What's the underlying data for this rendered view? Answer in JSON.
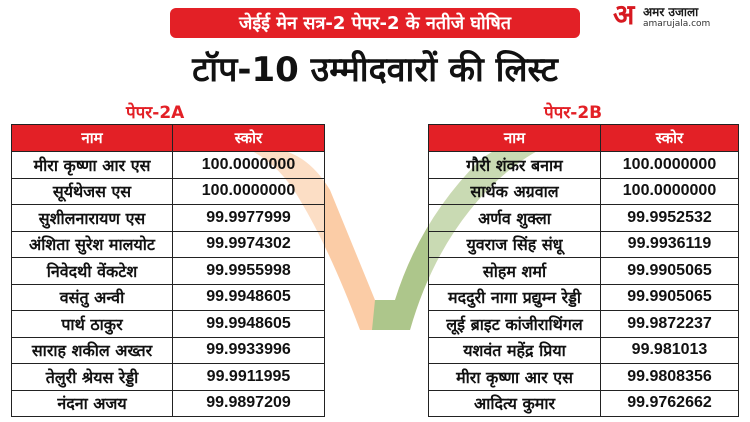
{
  "headline": "जेईई मेन सत्र-2 पेपर-2 के नतीजे घोषित",
  "subtitle": "टॉप-10 उम्मीदवारों की लिस्ट",
  "logo": {
    "mark": "अ",
    "name": "अमर उजाला",
    "url": "amarujala.com"
  },
  "colors": {
    "accent": "#e32026",
    "saffron": "#f7a35c",
    "green": "#7ac27a"
  },
  "tables": {
    "paper_2a": {
      "label": "पेपर-2A",
      "headers": [
        "नाम",
        "स्कोर"
      ],
      "rows": [
        [
          "मीरा कृष्णा आर एस",
          "100.0000000"
        ],
        [
          "सूर्यथेजस एस",
          "100.0000000"
        ],
        [
          "सुशीलनारायण एस",
          "99.9977999"
        ],
        [
          "अंशिता सुरेश मालयोट",
          "99.9974302"
        ],
        [
          "निवेदथी वेंकटेश",
          "99.9955998"
        ],
        [
          "वसंतु अन्वी",
          "99.9948605"
        ],
        [
          "पार्थ ठाकुर",
          "99.9948605"
        ],
        [
          "साराह शकील अख्तर",
          "99.9933996"
        ],
        [
          "तेलुरी श्रेयस रेड्डी",
          "99.9911995"
        ],
        [
          "नंदना अजय",
          "99.9897209"
        ]
      ]
    },
    "paper_2b": {
      "label": "पेपर-2B",
      "headers": [
        "नाम",
        "स्कोर"
      ],
      "rows": [
        [
          "गौरी शंकर बनाम",
          "100.0000000"
        ],
        [
          "सार्थक अग्रवाल",
          "100.0000000"
        ],
        [
          "अर्णव शुक्ला",
          "99.9952532"
        ],
        [
          "युवराज सिंह संधू",
          "99.9936119"
        ],
        [
          "सोहम शर्मा",
          "99.9905065"
        ],
        [
          "मददुरी नागा प्रद्युम्न रेड्डी",
          "99.9905065"
        ],
        [
          "लूई ब्राइट कांजीराथिंगल",
          "99.9872237"
        ],
        [
          "यशवंत महेंद्र प्रिया",
          "99.981013"
        ],
        [
          "मीरा कृष्णा आर एस",
          "99.9808356"
        ],
        [
          "आदित्य कुमार",
          "99.9762662"
        ]
      ]
    }
  }
}
